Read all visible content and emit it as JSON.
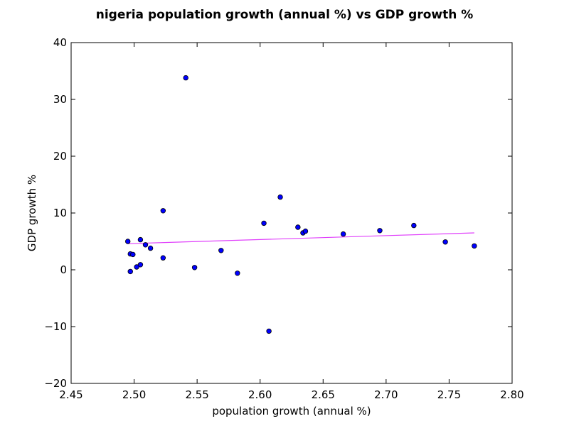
{
  "chart_data": {
    "type": "scatter",
    "title": "nigeria population growth (annual %) vs GDP growth %",
    "xlabel": "population growth (annual %)",
    "ylabel": "GDP growth %",
    "xlim": [
      2.45,
      2.8
    ],
    "ylim": [
      -20,
      40
    ],
    "xticks": [
      "2.45",
      "2.50",
      "2.55",
      "2.60",
      "2.65",
      "2.70",
      "2.75",
      "2.80"
    ],
    "yticks": [
      "−20",
      "−10",
      "0",
      "10",
      "20",
      "30",
      "40"
    ],
    "grid": false,
    "point_color": "#0000ff",
    "trendline_color": "#e040fb",
    "trendline": {
      "x": [
        2.495,
        2.77
      ],
      "y": [
        4.6,
        6.5
      ]
    },
    "points": [
      {
        "x": 2.495,
        "y": 5.0
      },
      {
        "x": 2.497,
        "y": 2.8
      },
      {
        "x": 2.497,
        "y": -0.3
      },
      {
        "x": 2.499,
        "y": 2.7
      },
      {
        "x": 2.502,
        "y": 0.5
      },
      {
        "x": 2.505,
        "y": 5.3
      },
      {
        "x": 2.505,
        "y": 0.9
      },
      {
        "x": 2.509,
        "y": 4.4
      },
      {
        "x": 2.513,
        "y": 3.8
      },
      {
        "x": 2.523,
        "y": 10.4
      },
      {
        "x": 2.523,
        "y": 2.1
      },
      {
        "x": 2.541,
        "y": 33.8
      },
      {
        "x": 2.548,
        "y": 0.4
      },
      {
        "x": 2.569,
        "y": 3.4
      },
      {
        "x": 2.582,
        "y": -0.6
      },
      {
        "x": 2.603,
        "y": 8.2
      },
      {
        "x": 2.607,
        "y": -10.8
      },
      {
        "x": 2.616,
        "y": 12.8
      },
      {
        "x": 2.63,
        "y": 7.5
      },
      {
        "x": 2.634,
        "y": 6.5
      },
      {
        "x": 2.636,
        "y": 6.8
      },
      {
        "x": 2.666,
        "y": 6.3
      },
      {
        "x": 2.695,
        "y": 6.9
      },
      {
        "x": 2.722,
        "y": 7.8
      },
      {
        "x": 2.747,
        "y": 4.9
      },
      {
        "x": 2.77,
        "y": 4.2
      }
    ]
  }
}
